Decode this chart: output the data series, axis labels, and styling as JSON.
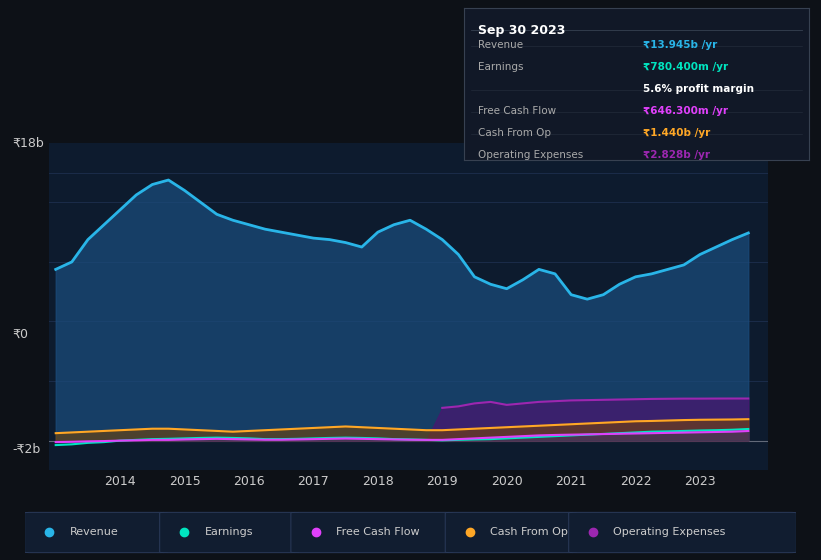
{
  "bg_color": "#0d1117",
  "plot_bg_color": "#0d1b2e",
  "grid_color": "#1e3050",
  "text_color": "#cccccc",
  "title_color": "#ffffff",
  "ylim_low": -2000000000,
  "ylim_high": 20000000000,
  "years": [
    2013.0,
    2013.25,
    2013.5,
    2013.75,
    2014.0,
    2014.25,
    2014.5,
    2014.75,
    2015.0,
    2015.25,
    2015.5,
    2015.75,
    2016.0,
    2016.25,
    2016.5,
    2016.75,
    2017.0,
    2017.25,
    2017.5,
    2017.75,
    2018.0,
    2018.25,
    2018.5,
    2018.75,
    2019.0,
    2019.25,
    2019.5,
    2019.75,
    2020.0,
    2020.25,
    2020.5,
    2020.75,
    2021.0,
    2021.25,
    2021.5,
    2021.75,
    2022.0,
    2022.25,
    2022.5,
    2022.75,
    2023.0,
    2023.25,
    2023.5,
    2023.75
  ],
  "revenue": [
    11500000000,
    12000000000,
    13500000000,
    14500000000,
    15500000000,
    16500000000,
    17200000000,
    17500000000,
    16800000000,
    16000000000,
    15200000000,
    14800000000,
    14500000000,
    14200000000,
    14000000000,
    13800000000,
    13600000000,
    13500000000,
    13300000000,
    13000000000,
    14000000000,
    14500000000,
    14800000000,
    14200000000,
    13500000000,
    12500000000,
    11000000000,
    10500000000,
    10200000000,
    10800000000,
    11500000000,
    11200000000,
    9800000000,
    9500000000,
    9800000000,
    10500000000,
    11000000000,
    11200000000,
    11500000000,
    11800000000,
    12500000000,
    13000000000,
    13500000000,
    13945000000
  ],
  "earnings": [
    -300000000,
    -250000000,
    -150000000,
    -100000000,
    0,
    50000000,
    100000000,
    120000000,
    150000000,
    180000000,
    200000000,
    180000000,
    150000000,
    100000000,
    100000000,
    120000000,
    150000000,
    180000000,
    200000000,
    180000000,
    150000000,
    100000000,
    80000000,
    50000000,
    20000000,
    50000000,
    80000000,
    100000000,
    150000000,
    200000000,
    250000000,
    300000000,
    350000000,
    400000000,
    450000000,
    500000000,
    550000000,
    600000000,
    620000000,
    650000000,
    680000000,
    700000000,
    730000000,
    780400000
  ],
  "free_cash_flow": [
    -100000000,
    -80000000,
    -50000000,
    -30000000,
    0,
    20000000,
    50000000,
    50000000,
    80000000,
    100000000,
    120000000,
    100000000,
    80000000,
    60000000,
    60000000,
    80000000,
    100000000,
    120000000,
    140000000,
    120000000,
    100000000,
    80000000,
    60000000,
    50000000,
    50000000,
    100000000,
    150000000,
    200000000,
    250000000,
    300000000,
    350000000,
    380000000,
    400000000,
    420000000,
    440000000,
    460000000,
    480000000,
    500000000,
    520000000,
    540000000,
    560000000,
    580000000,
    600000000,
    646300000
  ],
  "cash_from_op": [
    500000000,
    550000000,
    600000000,
    650000000,
    700000000,
    750000000,
    800000000,
    800000000,
    750000000,
    700000000,
    650000000,
    600000000,
    650000000,
    700000000,
    750000000,
    800000000,
    850000000,
    900000000,
    950000000,
    900000000,
    850000000,
    800000000,
    750000000,
    700000000,
    700000000,
    750000000,
    800000000,
    850000000,
    900000000,
    950000000,
    1000000000,
    1050000000,
    1100000000,
    1150000000,
    1200000000,
    1250000000,
    1300000000,
    1320000000,
    1350000000,
    1380000000,
    1400000000,
    1410000000,
    1420000000,
    1440000000
  ],
  "operating_expenses": [
    0,
    0,
    0,
    0,
    0,
    0,
    0,
    0,
    0,
    0,
    0,
    0,
    0,
    0,
    0,
    0,
    0,
    0,
    0,
    0,
    0,
    0,
    0,
    0,
    2200000000,
    2300000000,
    2500000000,
    2600000000,
    2400000000,
    2500000000,
    2600000000,
    2650000000,
    2700000000,
    2720000000,
    2740000000,
    2760000000,
    2780000000,
    2800000000,
    2810000000,
    2820000000,
    2820000000,
    2825000000,
    2827000000,
    2828000000
  ],
  "revenue_color": "#29b5e8",
  "revenue_fill": "#1a4a7a",
  "earnings_color": "#00e5c0",
  "free_cash_flow_color": "#e040fb",
  "cash_from_op_color": "#ffa726",
  "operating_expenses_color": "#9c27b0",
  "operating_expenses_fill": "#4a1570",
  "cash_from_op_fill": "#7a4400",
  "tooltip_bg": "#111827",
  "tooltip_border": "#374151",
  "tooltip_title": "Sep 30 2023",
  "tooltip_revenue_label": "Revenue",
  "tooltip_revenue_val": "₹13.945b /yr",
  "tooltip_earnings_label": "Earnings",
  "tooltip_earnings_val": "₹780.400m /yr",
  "tooltip_margin": "5.6% profit margin",
  "tooltip_fcf_label": "Free Cash Flow",
  "tooltip_fcf_val": "₹646.300m /yr",
  "tooltip_cfop_label": "Cash From Op",
  "tooltip_cfop_val": "₹1.440b /yr",
  "tooltip_opex_label": "Operating Expenses",
  "tooltip_opex_val": "₹2.828b /yr",
  "legend_items": [
    "Revenue",
    "Earnings",
    "Free Cash Flow",
    "Cash From Op",
    "Operating Expenses"
  ],
  "legend_colors": [
    "#29b5e8",
    "#00e5c0",
    "#e040fb",
    "#ffa726",
    "#9c27b0"
  ],
  "xtick_positions": [
    2014,
    2015,
    2016,
    2017,
    2018,
    2019,
    2020,
    2021,
    2022,
    2023
  ],
  "xtick_labels": [
    "2014",
    "2015",
    "2016",
    "2017",
    "2018",
    "2019",
    "2020",
    "2021",
    "2022",
    "2023"
  ],
  "ylabel_top": "₹18b",
  "ylabel_zero": "₹0",
  "ylabel_neg": "-₹2b"
}
